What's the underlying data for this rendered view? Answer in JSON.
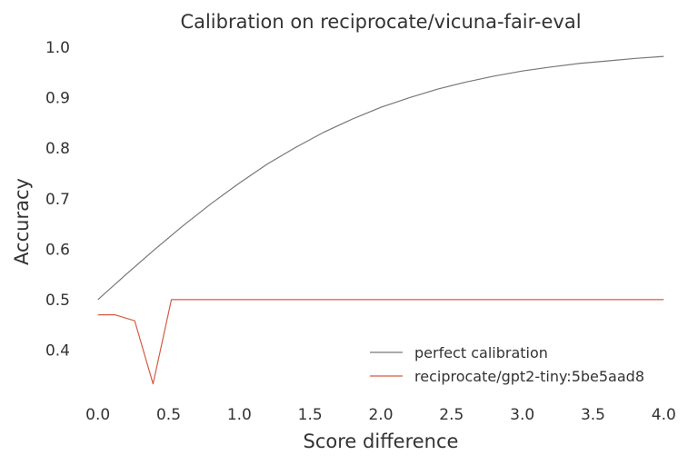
{
  "chart_data": {
    "type": "line",
    "title": "Calibration on reciprocate/vicuna-fair-eval",
    "xlabel": "Score difference",
    "ylabel": "Accuracy",
    "xlim": [
      -0.12,
      4.12
    ],
    "ylim": [
      0.3,
      1.02
    ],
    "xticks": [
      0.0,
      0.5,
      1.0,
      1.5,
      2.0,
      2.5,
      3.0,
      3.5,
      4.0
    ],
    "xtick_labels": [
      "0.0",
      "0.5",
      "1.0",
      "1.5",
      "2.0",
      "2.5",
      "3.0",
      "3.5",
      "4.0"
    ],
    "yticks": [
      0.4,
      0.5,
      0.6,
      0.7,
      0.8,
      0.9,
      1.0
    ],
    "ytick_labels": [
      "0.4",
      "0.5",
      "0.6",
      "0.7",
      "0.8",
      "0.9",
      "1.0"
    ],
    "grid": false,
    "legend": "lower-right",
    "series": [
      {
        "name": "perfect calibration",
        "color": "#777777",
        "x": [
          0.0,
          0.2,
          0.4,
          0.6,
          0.8,
          1.0,
          1.2,
          1.4,
          1.6,
          1.8,
          2.0,
          2.2,
          2.4,
          2.6,
          2.8,
          3.0,
          3.2,
          3.4,
          3.6,
          3.8,
          4.0
        ],
        "y": [
          0.5,
          0.55,
          0.599,
          0.646,
          0.69,
          0.731,
          0.769,
          0.802,
          0.832,
          0.858,
          0.881,
          0.9,
          0.917,
          0.931,
          0.943,
          0.953,
          0.961,
          0.968,
          0.973,
          0.978,
          0.982
        ]
      },
      {
        "name": "reciprocate/gpt2-tiny:5be5aad8",
        "color": "#d45c43",
        "x": [
          0.0,
          0.12,
          0.26,
          0.39,
          0.52,
          4.0
        ],
        "y": [
          0.47,
          0.47,
          0.458,
          0.333,
          0.5,
          0.5
        ]
      }
    ]
  }
}
